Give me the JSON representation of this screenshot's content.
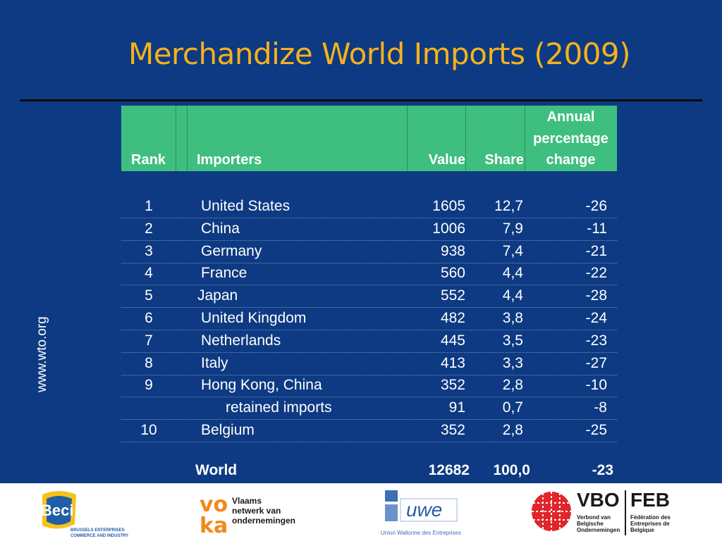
{
  "title": "Merchandize World Imports (2009)",
  "side_url": "www.wto.org",
  "table": {
    "headers": {
      "rank": "Rank",
      "importers": "Importers",
      "value": "Value",
      "share": "Share",
      "change_line1": "Annual",
      "change_line2": "percentage",
      "change_line3": "change"
    },
    "rows": [
      {
        "rank": "1",
        "name": "United States",
        "value": "1605",
        "share": "12,7",
        "change": "-26"
      },
      {
        "rank": "2",
        "name": "China",
        "value": "1006",
        "share": "7,9",
        "change": "-11"
      },
      {
        "rank": "3",
        "name": "Germany",
        "value": "938",
        "share": "7,4",
        "change": "-21"
      },
      {
        "rank": "4",
        "name": "France",
        "value": "560",
        "share": "4,4",
        "change": "-22"
      },
      {
        "rank": "5",
        "name": "Japan",
        "value": "552",
        "share": "4,4",
        "change": "-28"
      },
      {
        "rank": "6",
        "name": "United Kingdom",
        "value": "482",
        "share": "3,8",
        "change": "-24"
      },
      {
        "rank": "7",
        "name": "Netherlands",
        "value": "445",
        "share": "3,5",
        "change": "-23"
      },
      {
        "rank": "8",
        "name": "Italy",
        "value": "413",
        "share": "3,3",
        "change": "-27"
      },
      {
        "rank": "9",
        "name": "Hong Kong, China",
        "value": "352",
        "share": "2,8",
        "change": "-10"
      },
      {
        "rank": "",
        "name": "retained imports",
        "value": "91",
        "share": "0,7",
        "change": "-8"
      },
      {
        "rank": "10",
        "name": "Belgium",
        "value": "352",
        "share": "2,8",
        "change": "-25"
      }
    ],
    "total": {
      "name": "World",
      "value": "12682",
      "share": "100,0",
      "change": "-23"
    }
  },
  "logos": {
    "beci": "Beci",
    "beci_sub1": "BRUSSELS ENTERPRISES",
    "beci_sub2": "COMMERCE AND INDUSTRY",
    "voka_1": "Vlaams",
    "voka_2": "netwerk van",
    "voka_3": "ondernemingen",
    "uwe": "uwe",
    "uwe_sub": "Union Wallonne des Entreprises",
    "vbo": "VBO",
    "feb": "FEB",
    "vbo_sub1": "Verbond van",
    "vbo_sub2": "Belgische",
    "vbo_sub3": "Ondernemingen",
    "feb_sub1": "Fédération des",
    "feb_sub2": "Entreprises de",
    "feb_sub3": "Belgique"
  }
}
